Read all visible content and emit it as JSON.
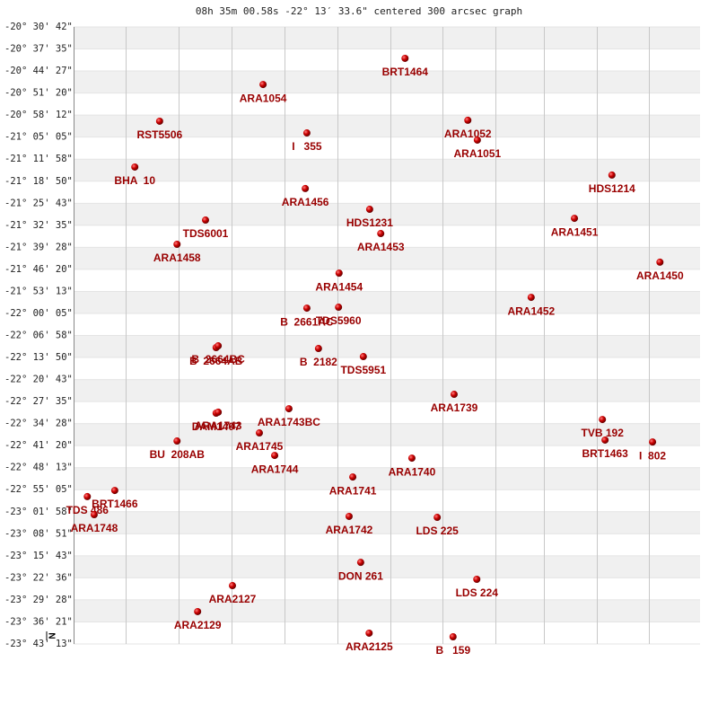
{
  "chart_data": {
    "type": "scatter",
    "title": "08h 35m 00.58s -22° 13′ 33.6\" centered 300 arcsec graph",
    "north_label": "N",
    "color": "#cc0000",
    "label_color": "#990000",
    "xlim": [
      0,
      11.87
    ],
    "ylim": [
      -20.5117,
      -23.7203
    ],
    "yticks": [
      {
        "value": -20.5117,
        "label": "-20° 30' 42\""
      },
      {
        "value": -20.6264,
        "label": "-20° 37' 35\""
      },
      {
        "value": -20.7408,
        "label": "-20° 44' 27\""
      },
      {
        "value": -20.8556,
        "label": "-20° 51' 20\""
      },
      {
        "value": -20.97,
        "label": "-20° 58' 12\""
      },
      {
        "value": -21.0847,
        "label": "-21° 05' 05\""
      },
      {
        "value": -21.1994,
        "label": "-21° 11' 58\""
      },
      {
        "value": -21.3139,
        "label": "-21° 18' 50\""
      },
      {
        "value": -21.4286,
        "label": "-21° 25' 43\""
      },
      {
        "value": -21.5431,
        "label": "-21° 32' 35\""
      },
      {
        "value": -21.6578,
        "label": "-21° 39' 28\""
      },
      {
        "value": -21.7722,
        "label": "-21° 46' 20\""
      },
      {
        "value": -21.8869,
        "label": "-21° 53' 13\""
      },
      {
        "value": -22.0014,
        "label": "-22° 00' 05\""
      },
      {
        "value": -22.1161,
        "label": "-22° 06' 58\""
      },
      {
        "value": -22.2306,
        "label": "-22° 13' 50\""
      },
      {
        "value": -22.3453,
        "label": "-22° 20' 43\""
      },
      {
        "value": -22.4597,
        "label": "-22° 27' 35\""
      },
      {
        "value": -22.5744,
        "label": "-22° 34' 28\""
      },
      {
        "value": -22.6889,
        "label": "-22° 41' 20\""
      },
      {
        "value": -22.8036,
        "label": "-22° 48' 13\""
      },
      {
        "value": -22.9181,
        "label": "-22° 55' 05\""
      },
      {
        "value": -23.0328,
        "label": "-23° 01' 58\""
      },
      {
        "value": -23.1475,
        "label": "-23° 08' 51\""
      },
      {
        "value": -23.2619,
        "label": "-23° 15' 43\""
      },
      {
        "value": -23.3767,
        "label": "-23° 22' 36\""
      },
      {
        "value": -23.4911,
        "label": "-23° 29' 28\""
      },
      {
        "value": -23.6058,
        "label": "-23° 36' 21\""
      },
      {
        "value": -23.7203,
        "label": "-23° 43' 13\""
      }
    ],
    "labels": [
      "BRT1464",
      "ARA1054",
      "RST5506",
      "I   355",
      "ARA1052",
      "ARA1051",
      "BHA  10",
      "HDS1214",
      "ARA1456",
      "HDS1231",
      "TDS6001",
      "ARA1451",
      "ARA1453",
      "ARA1458",
      "ARA1450",
      "ARA1454",
      "ARA1452",
      "B  2661AC",
      "TDS5960",
      "B  2664AB",
      "B  2664BC",
      "B  2182",
      "TDS5951",
      "ARA1739",
      "ARA1743BC",
      "DAM1407",
      "ARA1743",
      "ARA1745",
      "BU  208AB",
      "TVB 192",
      "BRT1463",
      "I  802",
      "ARA1744",
      "ARA1740",
      "ARA1741",
      "BRT1466",
      "TDS 486",
      "ARA1748",
      "ARA1742",
      "LDS 225",
      "DON 261",
      "LDS 224",
      "ARA2127",
      "ARA2129",
      "ARA2125",
      "B   159"
    ],
    "x": [
      6.28,
      3.59,
      1.63,
      4.42,
      7.47,
      7.65,
      1.16,
      10.2,
      4.39,
      5.61,
      2.5,
      9.49,
      5.82,
      1.96,
      11.11,
      5.03,
      8.67,
      4.42,
      5.02,
      2.7,
      2.74,
      4.64,
      5.49,
      7.21,
      4.08,
      2.7,
      2.74,
      3.52,
      1.96,
      10.02,
      10.07,
      10.97,
      3.81,
      6.41,
      5.29,
      0.78,
      0.26,
      0.39,
      5.22,
      6.89,
      5.44,
      7.64,
      3.01,
      2.35,
      5.6,
      7.19
    ],
    "values": [
      -20.675,
      -20.811,
      -21.002,
      -21.063,
      -20.997,
      -21.1,
      -21.24,
      -21.282,
      -21.352,
      -21.46,
      -21.516,
      -21.507,
      -21.586,
      -21.642,
      -21.735,
      -21.792,
      -21.918,
      -21.974,
      -21.969,
      -22.179,
      -22.17,
      -22.184,
      -22.226,
      -22.422,
      -22.497,
      -22.52,
      -22.515,
      -22.623,
      -22.665,
      -22.553,
      -22.66,
      -22.67,
      -22.74,
      -22.754,
      -22.852,
      -22.922,
      -22.954,
      -23.048,
      -23.057,
      -23.062,
      -23.296,
      -23.384,
      -23.417,
      -23.552,
      -23.664,
      -23.683
    ]
  }
}
